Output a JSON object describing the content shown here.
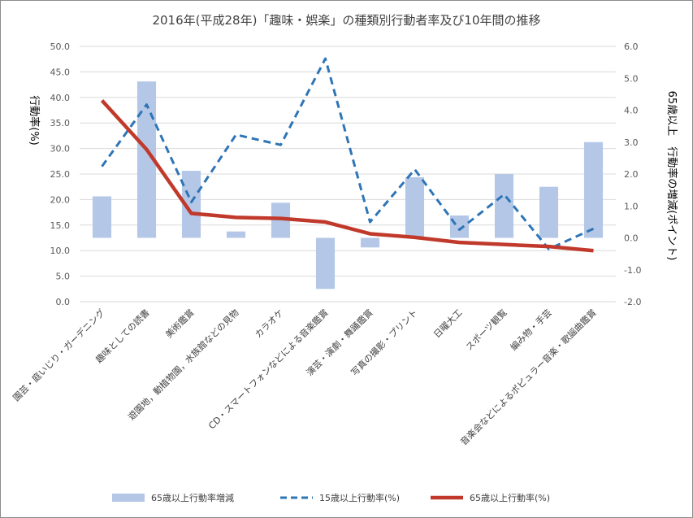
{
  "chart_data": {
    "type": "bar+line",
    "title": "2016年(平成28年)「趣味・娯楽」の種類別行動者率及び10年間の推移",
    "categories": [
      "園芸・庭いじり・ガーデニング",
      "趣味としての読書",
      "美術鑑賞",
      "遊園地，動植物園，水族館などの見物",
      "カラオケ",
      "CD・スマートフォンなどによる音楽鑑賞",
      "演芸・演劇・舞踊鑑賞",
      "写真の撮影・プリント",
      "日曜大工",
      "スポーツ観覧",
      "編み物・手芸",
      "音楽会などによるポピュラー音楽・歌謡曲鑑賞"
    ],
    "left_axis": {
      "label": "行動率(%)",
      "min": 0,
      "max": 50,
      "step": 5,
      "tick_labels": [
        "0.0",
        "5.0",
        "10.0",
        "15.0",
        "20.0",
        "25.0",
        "30.0",
        "35.0",
        "40.0",
        "45.0",
        "50.0"
      ]
    },
    "right_axis": {
      "label": "65歳以上　行動率の増減(ポイント)",
      "min": -2,
      "max": 6,
      "step": 1,
      "tick_labels": [
        "-2.0",
        "-1.0",
        "0.0",
        "1.0",
        "2.0",
        "3.0",
        "4.0",
        "5.0",
        "6.0"
      ]
    },
    "series": [
      {
        "name": "65歳以上行動率増減",
        "kind": "bar",
        "axis": "right",
        "color": "#b4c7e7",
        "values": [
          1.3,
          4.9,
          2.1,
          0.2,
          1.1,
          -1.6,
          -0.3,
          1.9,
          0.7,
          2.0,
          1.6,
          3.0
        ]
      },
      {
        "name": "15歳以上行動率(%)",
        "kind": "line",
        "style": "dashed",
        "axis": "left",
        "color": "#2e75b6",
        "values": [
          26.5,
          38.6,
          19.5,
          32.7,
          30.7,
          47.6,
          15.6,
          25.9,
          14.1,
          21.0,
          10.3,
          14.3
        ]
      },
      {
        "name": "65歳以上行動率(%)",
        "kind": "line",
        "style": "solid",
        "axis": "left",
        "color": "#c0392b",
        "values": [
          39.4,
          29.8,
          17.3,
          16.5,
          16.3,
          15.6,
          13.3,
          12.6,
          11.6,
          11.2,
          10.8,
          10.0
        ]
      }
    ],
    "legend_position": "bottom"
  }
}
